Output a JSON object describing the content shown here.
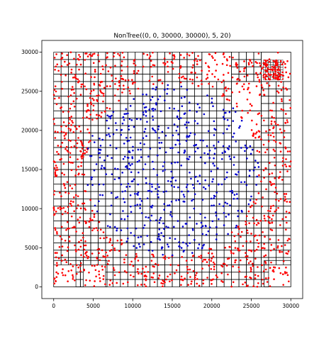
{
  "chart_data": {
    "type": "scatter",
    "title": "NonTree((0, 0, 30000, 30000), 5, 20)",
    "xlabel": "",
    "ylabel": "",
    "xlim": [
      -1500,
      31500
    ],
    "ylim": [
      -1500,
      31500
    ],
    "x_ticks": [
      0,
      5000,
      10000,
      15000,
      20000,
      25000,
      30000
    ],
    "y_ticks": [
      0,
      5000,
      10000,
      15000,
      20000,
      25000,
      30000
    ],
    "x_tick_labels": [
      "0",
      "5000",
      "10000",
      "15000",
      "20000",
      "25000",
      "30000"
    ],
    "y_tick_labels": [
      "0",
      "5000",
      "10000",
      "15000",
      "20000",
      "25000",
      "30000"
    ],
    "grid": false,
    "legend": "none",
    "domain": [
      0,
      0,
      30000,
      30000
    ],
    "fine_cell": 937.5,
    "coarse_cells": [
      [
        0,
        0,
        3375,
        3375
      ],
      [
        3375,
        0,
        6750,
        3375
      ],
      [
        26625,
        0,
        30000,
        3375
      ],
      [
        18750,
        26250,
        22500,
        30000
      ],
      [
        26250,
        26250,
        30000,
        30000
      ],
      [
        22500,
        22500,
        26250,
        26250
      ],
      [
        22500,
        18750,
        26250,
        22500
      ]
    ],
    "dense_cluster": {
      "x_range": [
        26500,
        29000
      ],
      "y_range": [
        26500,
        29000
      ]
    },
    "series": [
      {
        "color": "#ff0000",
        "description_points": "outer ring",
        "center": [
          15000,
          15000
        ],
        "inner_radius": 11000,
        "point_count": 1150,
        "seed": 7
      },
      {
        "color": "#0000cc",
        "description_points": "central disk",
        "center": [
          15000,
          15000
        ],
        "radius": 11000,
        "point_count": 560,
        "seed": 11
      }
    ]
  }
}
